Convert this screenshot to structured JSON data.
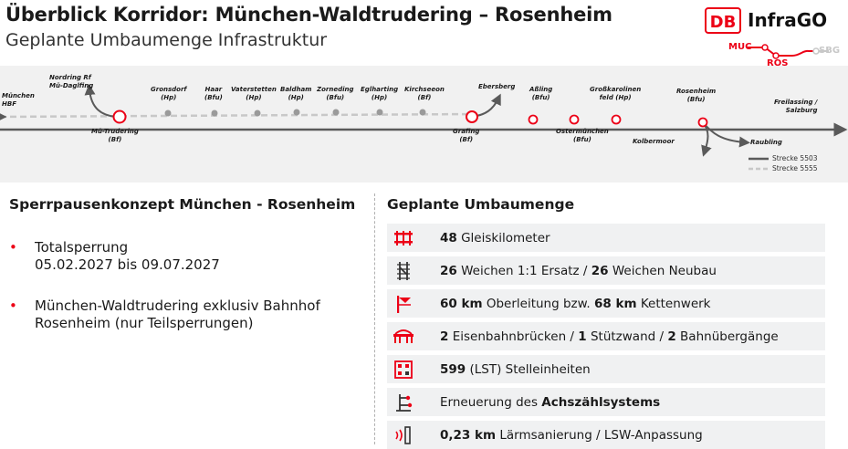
{
  "header": {
    "title": "Überblick Korridor: München-Waldtrudering – Rosenheim",
    "subtitle": "Geplante Umbaumenge Infrastruktur"
  },
  "logo": {
    "db": "DB",
    "brand": "InfraGO",
    "muc": "MUC",
    "ros": "ROS",
    "sbg": "SBG",
    "accent": "#ec0016"
  },
  "corridor": {
    "stations": [
      {
        "name": "München",
        "sub": "HBF"
      },
      {
        "name": "Nordring Rf",
        "sub": "Mü-Daglfing"
      },
      {
        "name": "Mü-Trudering",
        "sub": "(Bf)"
      },
      {
        "name": "Gronsdorf",
        "sub": "(Hp)"
      },
      {
        "name": "Haar",
        "sub": "(Bfu)"
      },
      {
        "name": "Vaterstetten",
        "sub": "(Hp)"
      },
      {
        "name": "Baldham",
        "sub": "(Hp)"
      },
      {
        "name": "Zorneding",
        "sub": "(Bfu)"
      },
      {
        "name": "Eglharting",
        "sub": "(Hp)"
      },
      {
        "name": "Kirchseeon",
        "sub": "(Bf)"
      },
      {
        "name": "Ebersberg",
        "sub": ""
      },
      {
        "name": "Grafing",
        "sub": "(Bf)"
      },
      {
        "name": "Aßling",
        "sub": "(Bfu)"
      },
      {
        "name": "Ostermünchen",
        "sub": "(Bfu)"
      },
      {
        "name": "Großkarolinen",
        "sub": "feld (Hp)"
      },
      {
        "name": "Rosenheim",
        "sub": "(Bfu)"
      },
      {
        "name": "Kolbermoor",
        "sub": ""
      },
      {
        "name": "Freilassing /",
        "sub": "Salzburg"
      },
      {
        "name": "Raubling",
        "sub": ""
      }
    ],
    "legend": [
      {
        "label": "Strecke 5503",
        "style": "solid"
      },
      {
        "label": "Strecke 5555",
        "style": "dashed"
      }
    ]
  },
  "left": {
    "heading": "Sperrpausenkonzept München - Rosenheim",
    "bullets": [
      {
        "lines": [
          "Totalsperrung",
          "05.02.2027 bis 09.07.2027"
        ]
      },
      {
        "lines": [
          "München-Waldtrudering exklusiv Bahnhof",
          "Rosenheim (nur Teilsperrungen)"
        ]
      }
    ]
  },
  "right": {
    "heading": "Geplante Umbaumenge",
    "rows": [
      {
        "icon": "track-icon",
        "parts": [
          {
            "b": "48"
          },
          {
            "t": " Gleiskilometer"
          }
        ]
      },
      {
        "icon": "switch-icon",
        "parts": [
          {
            "b": "26"
          },
          {
            "t": " Weichen 1:1 Ersatz / "
          },
          {
            "b": "26"
          },
          {
            "t": " Weichen Neubau"
          }
        ]
      },
      {
        "icon": "catenary-icon",
        "parts": [
          {
            "b": "60 km"
          },
          {
            "t": "  Oberleitung bzw. "
          },
          {
            "b": "68 km"
          },
          {
            "t": " Kettenwerk"
          }
        ]
      },
      {
        "icon": "bridge-icon",
        "parts": [
          {
            "b": "2"
          },
          {
            "t": " Eisenbahnbrücken / "
          },
          {
            "b": "1"
          },
          {
            "t": " Stützwand / "
          },
          {
            "b": "2"
          },
          {
            "t": " Bahnübergänge"
          }
        ]
      },
      {
        "icon": "interlocking-icon",
        "parts": [
          {
            "b": "599"
          },
          {
            "t": " (LST) Stelleinheiten"
          }
        ]
      },
      {
        "icon": "axle-counter-icon",
        "parts": [
          {
            "t": "Erneuerung des "
          },
          {
            "b": "Achszählsystems"
          }
        ]
      },
      {
        "icon": "noise-barrier-icon",
        "parts": [
          {
            "b": "0,23 km"
          },
          {
            "t": " Lärmsanierung / LSW-Anpassung"
          }
        ]
      }
    ]
  }
}
